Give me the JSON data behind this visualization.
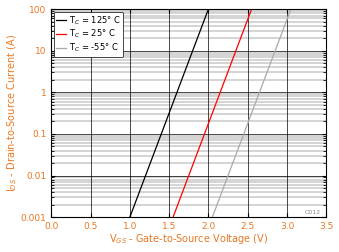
{
  "title": "",
  "xlabel": "V$_{GS}$ - Gate-to-Source Voltage (V)",
  "ylabel": "I$_{DS}$ - Drain-to-Source Current (A)",
  "xlim": [
    0,
    3.5
  ],
  "ylim_log": [
    0.001,
    100
  ],
  "xticks": [
    0,
    0.5,
    1.0,
    1.5,
    2.0,
    2.5,
    3.0,
    3.5
  ],
  "ytick_labels": [
    "0.001",
    "0.01",
    "0.1",
    "1",
    "10",
    "100"
  ],
  "curves": [
    {
      "label": "T$_C$ = 125° C",
      "color": "#000000",
      "vth": 1.0,
      "slope": 11.5138
    },
    {
      "label": "T$_C$ = 25° C",
      "color": "#ff0000",
      "vth": 1.55,
      "slope": 11.5138
    },
    {
      "label": "T$_C$ = -55° C",
      "color": "#aaaaaa",
      "vth": 2.05,
      "slope": 11.5138
    }
  ],
  "axis_color": "#e87722",
  "legend_fontsize": 6.0,
  "tick_fontsize": 6.5,
  "label_fontsize": 7.0,
  "watermark": "C012"
}
